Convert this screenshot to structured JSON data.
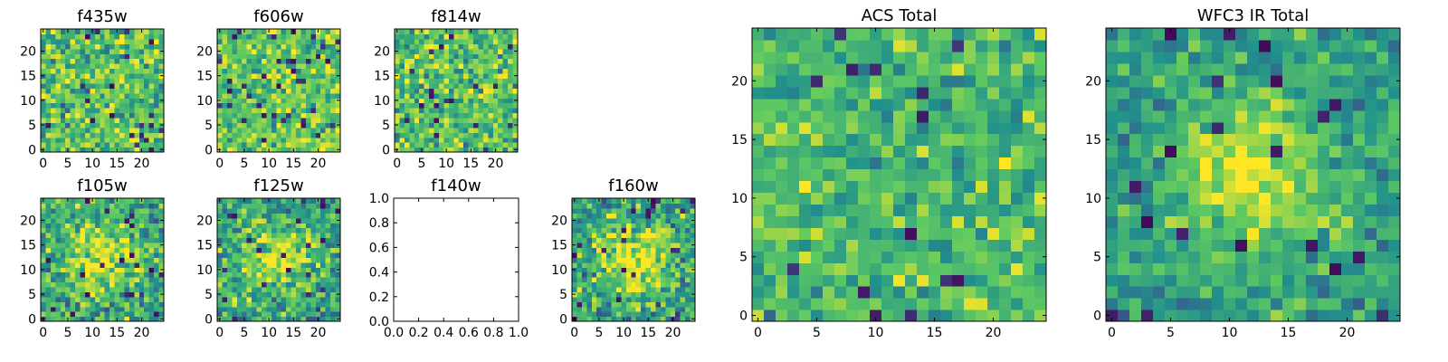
{
  "figure": {
    "colormap": "viridis",
    "cmap_anchor_colors": [
      "#440154",
      "#3b528b",
      "#21918c",
      "#5ec962",
      "#fde725"
    ],
    "axis_frame_color": "#000000"
  },
  "chart_data": [
    {
      "type": "heatmap",
      "title": "f435w",
      "grid": [
        25,
        25
      ],
      "xlim": [
        0,
        24
      ],
      "ylim": [
        0,
        24
      ],
      "xticks": [
        "0",
        "5",
        "10",
        "15",
        "20"
      ],
      "yticks": [
        "0",
        "5",
        "10",
        "15",
        "20"
      ],
      "pattern": "noise",
      "seed": 11,
      "mean": 0.72,
      "spread": 0.2
    },
    {
      "type": "heatmap",
      "title": "f606w",
      "grid": [
        25,
        25
      ],
      "xlim": [
        0,
        24
      ],
      "ylim": [
        0,
        24
      ],
      "xticks": [
        "0",
        "5",
        "10",
        "15",
        "20"
      ],
      "yticks": [
        "0",
        "5",
        "10",
        "15",
        "20"
      ],
      "pattern": "noise",
      "seed": 23,
      "mean": 0.74,
      "spread": 0.18
    },
    {
      "type": "heatmap",
      "title": "f814w",
      "grid": [
        25,
        25
      ],
      "xlim": [
        0,
        24
      ],
      "ylim": [
        0,
        24
      ],
      "xticks": [
        "0",
        "5",
        "10",
        "15",
        "20"
      ],
      "yticks": [
        "0",
        "5",
        "10",
        "15",
        "20"
      ],
      "pattern": "noise",
      "seed": 37,
      "mean": 0.72,
      "spread": 0.2
    },
    {
      "type": "heatmap",
      "title": "f105w",
      "grid": [
        25,
        25
      ],
      "xlim": [
        0,
        24
      ],
      "ylim": [
        0,
        24
      ],
      "xticks": [
        "0",
        "5",
        "10",
        "15",
        "20"
      ],
      "yticks": [
        "0",
        "5",
        "10",
        "15",
        "20"
      ],
      "pattern": "source",
      "seed": 41,
      "mean": 0.6,
      "spread": 0.2,
      "peak": [
        12,
        12
      ],
      "peak_amp": 0.35,
      "peak_width": 5
    },
    {
      "type": "heatmap",
      "title": "f125w",
      "grid": [
        25,
        25
      ],
      "xlim": [
        0,
        24
      ],
      "ylim": [
        0,
        24
      ],
      "xticks": [
        "0",
        "5",
        "10",
        "15",
        "20"
      ],
      "yticks": [
        "0",
        "5",
        "10",
        "15",
        "20"
      ],
      "pattern": "source",
      "seed": 53,
      "mean": 0.58,
      "spread": 0.2,
      "peak": [
        12,
        12
      ],
      "peak_amp": 0.35,
      "peak_width": 5
    },
    {
      "type": "empty",
      "title": "f140w",
      "xlim": [
        0,
        1
      ],
      "ylim": [
        0,
        1
      ],
      "xticks": [
        "0.0",
        "0.2",
        "0.4",
        "0.6",
        "0.8",
        "1.0"
      ],
      "yticks": [
        "0.0",
        "0.2",
        "0.4",
        "0.6",
        "0.8",
        "1.0"
      ]
    },
    {
      "type": "heatmap",
      "title": "f160w",
      "grid": [
        25,
        25
      ],
      "xlim": [
        0,
        24
      ],
      "ylim": [
        0,
        24
      ],
      "xticks": [
        "0",
        "5",
        "10",
        "15",
        "20"
      ],
      "yticks": [
        "0",
        "5",
        "10",
        "15",
        "20"
      ],
      "pattern": "source",
      "seed": 67,
      "mean": 0.58,
      "spread": 0.22,
      "peak": [
        12,
        12
      ],
      "peak_amp": 0.38,
      "peak_width": 5
    },
    {
      "type": "heatmap",
      "title": "ACS Total",
      "grid": [
        25,
        25
      ],
      "xlim": [
        0,
        24
      ],
      "ylim": [
        0,
        24
      ],
      "xticks": [
        "0",
        "5",
        "10",
        "15",
        "20"
      ],
      "yticks": [
        "0",
        "5",
        "10",
        "15",
        "20"
      ],
      "pattern": "noise",
      "seed": 79,
      "mean": 0.68,
      "spread": 0.16
    },
    {
      "type": "heatmap",
      "title": "WFC3 IR Total",
      "grid": [
        25,
        25
      ],
      "xlim": [
        0,
        24
      ],
      "ylim": [
        0,
        24
      ],
      "xticks": [
        "0",
        "5",
        "10",
        "15",
        "20"
      ],
      "yticks": [
        "0",
        "5",
        "10",
        "15",
        "20"
      ],
      "pattern": "source",
      "seed": 97,
      "mean": 0.55,
      "spread": 0.14,
      "peak": [
        12,
        12
      ],
      "peak_amp": 0.42,
      "peak_width": 4.5
    }
  ]
}
